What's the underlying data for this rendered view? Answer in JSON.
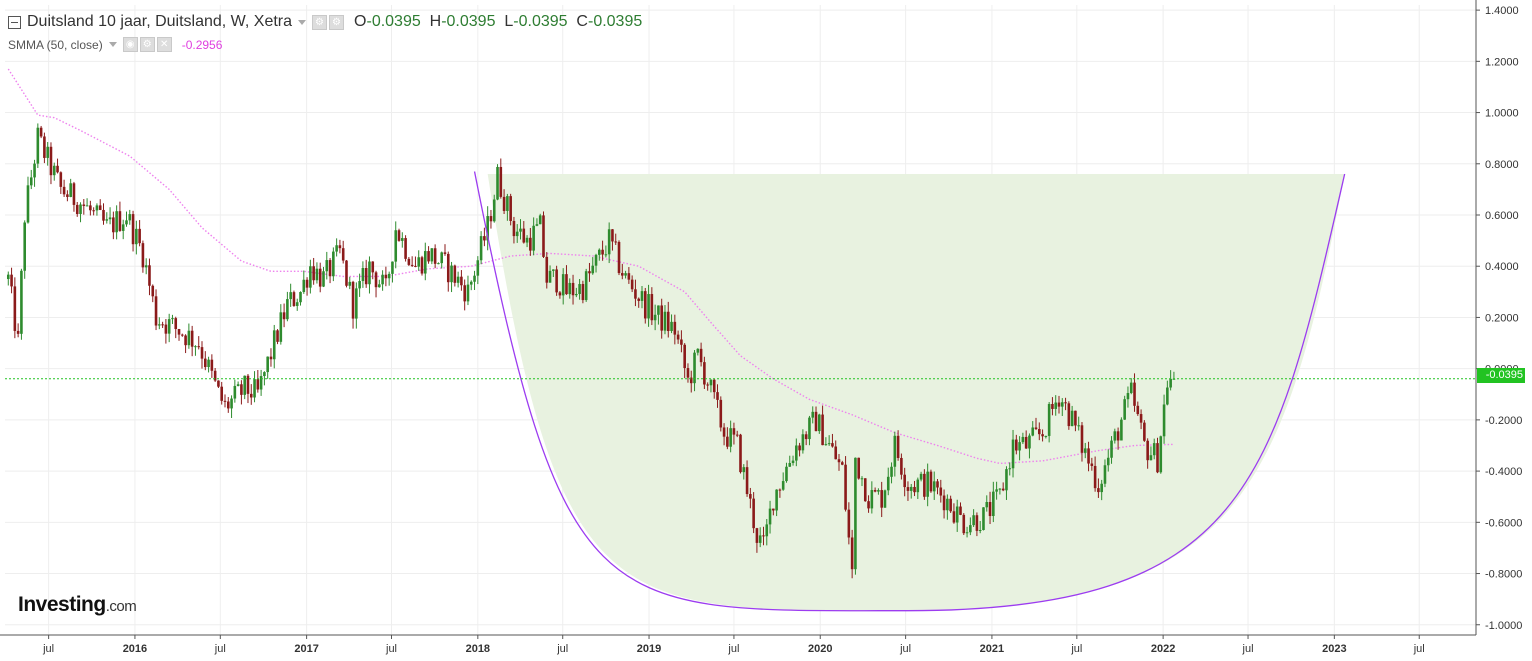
{
  "header": {
    "title": "Duitsland 10 jaar, Duitsland, W, Xetra",
    "ohlc": {
      "o_label": "O",
      "o": "-0.0395",
      "h_label": "H",
      "h": "-0.0395",
      "l_label": "L",
      "l": "-0.0395",
      "c_label": "C",
      "c": "-0.0395"
    }
  },
  "indicator": {
    "label": "SMMA (50, close)",
    "value": "-0.2956",
    "color": "#e040e0"
  },
  "logo": {
    "main": "Investing",
    "domain": ".com"
  },
  "last_price_tag": "-0.0395",
  "colors": {
    "up": "#2e8b2e",
    "down": "#8b1a1a",
    "smma": "#ee82ee",
    "arc": "#9c3cf0",
    "fill": "#e8f2e0",
    "price_line": "#22c322",
    "grid": "#eeeeee"
  },
  "chart_data": {
    "type": "candlestick",
    "timeframe": "W",
    "x_ticks": [
      "jul",
      "2016",
      "jul",
      "2017",
      "jul",
      "2018",
      "jul",
      "2019",
      "jul",
      "2020",
      "jul",
      "2021",
      "jul",
      "2022",
      "jul",
      "2023",
      "jul"
    ],
    "y_ticks": [
      "1.4000",
      "1.2000",
      "1.0000",
      "0.8000",
      "0.6000",
      "0.4000",
      "0.2000",
      "0.0000",
      "-0.2000",
      "-0.4000",
      "-0.6000",
      "-0.8000",
      "-1.0000"
    ],
    "ylim": [
      -1.04,
      1.42
    ],
    "anchors": [
      [
        "2015-04-06",
        0.35
      ],
      [
        "2015-04-27",
        0.1
      ],
      [
        "2015-05-11",
        0.6
      ],
      [
        "2015-06-08",
        0.9
      ],
      [
        "2015-07-27",
        0.7
      ],
      [
        "2015-09-07",
        0.65
      ],
      [
        "2015-11-02",
        0.55
      ],
      [
        "2015-12-14",
        0.6
      ],
      [
        "2016-01-18",
        0.45
      ],
      [
        "2016-02-15",
        0.2
      ],
      [
        "2016-04-04",
        0.15
      ],
      [
        "2016-05-16",
        0.1
      ],
      [
        "2016-06-27",
        -0.1
      ],
      [
        "2016-07-11",
        -0.15
      ],
      [
        "2016-08-22",
        -0.08
      ],
      [
        "2016-09-19",
        -0.1
      ],
      [
        "2016-10-24",
        0.1
      ],
      [
        "2016-11-21",
        0.25
      ],
      [
        "2016-12-19",
        0.3
      ],
      [
        "2017-01-09",
        0.4
      ],
      [
        "2017-02-06",
        0.35
      ],
      [
        "2017-03-13",
        0.45
      ],
      [
        "2017-04-10",
        0.25
      ],
      [
        "2017-05-15",
        0.4
      ],
      [
        "2017-06-19",
        0.3
      ],
      [
        "2017-07-10",
        0.55
      ],
      [
        "2017-08-21",
        0.4
      ],
      [
        "2017-09-18",
        0.45
      ],
      [
        "2017-10-23",
        0.4
      ],
      [
        "2017-12-11",
        0.3
      ],
      [
        "2018-01-22",
        0.55
      ],
      [
        "2018-02-12",
        0.75
      ],
      [
        "2018-03-19",
        0.55
      ],
      [
        "2018-04-16",
        0.5
      ],
      [
        "2018-05-14",
        0.55
      ],
      [
        "2018-05-28",
        0.35
      ],
      [
        "2018-06-18",
        0.35
      ],
      [
        "2018-07-09",
        0.3
      ],
      [
        "2018-08-13",
        0.32
      ],
      [
        "2018-10-08",
        0.5
      ],
      [
        "2018-11-12",
        0.35
      ],
      [
        "2018-12-24",
        0.25
      ],
      [
        "2019-01-21",
        0.2
      ],
      [
        "2019-02-25",
        0.15
      ],
      [
        "2019-03-25",
        -0.05
      ],
      [
        "2019-04-15",
        0.05
      ],
      [
        "2019-05-06",
        -0.05
      ],
      [
        "2019-06-10",
        -0.25
      ],
      [
        "2019-07-08",
        -0.3
      ],
      [
        "2019-08-19",
        -0.65
      ],
      [
        "2019-09-02",
        -0.7
      ],
      [
        "2019-09-23",
        -0.5
      ],
      [
        "2019-11-11",
        -0.3
      ],
      [
        "2019-12-23",
        -0.2
      ],
      [
        "2020-02-17",
        -0.4
      ],
      [
        "2020-03-09",
        -0.8
      ],
      [
        "2020-03-16",
        -0.35
      ],
      [
        "2020-04-13",
        -0.5
      ],
      [
        "2020-05-11",
        -0.5
      ],
      [
        "2020-06-08",
        -0.3
      ],
      [
        "2020-07-06",
        -0.45
      ],
      [
        "2020-08-17",
        -0.45
      ],
      [
        "2020-09-21",
        -0.5
      ],
      [
        "2020-11-02",
        -0.6
      ],
      [
        "2020-12-14",
        -0.58
      ],
      [
        "2021-01-18",
        -0.5
      ],
      [
        "2021-02-15",
        -0.3
      ],
      [
        "2021-03-15",
        -0.3
      ],
      [
        "2021-04-19",
        -0.25
      ],
      [
        "2021-05-24",
        -0.1
      ],
      [
        "2021-06-21",
        -0.2
      ],
      [
        "2021-07-12",
        -0.3
      ],
      [
        "2021-08-16",
        -0.45
      ],
      [
        "2021-09-06",
        -0.35
      ],
      [
        "2021-10-04",
        -0.2
      ],
      [
        "2021-10-25",
        -0.1
      ],
      [
        "2021-11-22",
        -0.3
      ],
      [
        "2021-12-20",
        -0.35
      ],
      [
        "2022-01-10",
        -0.05
      ],
      [
        "2022-01-24",
        -0.0395
      ]
    ],
    "smma": [
      [
        "2015-04-06",
        1.17
      ],
      [
        "2015-06-08",
        0.99
      ],
      [
        "2015-07-13",
        0.98
      ],
      [
        "2015-09-07",
        0.93
      ],
      [
        "2015-12-21",
        0.83
      ],
      [
        "2016-03-14",
        0.7
      ],
      [
        "2016-05-23",
        0.55
      ],
      [
        "2016-08-15",
        0.42
      ],
      [
        "2016-10-17",
        0.38
      ],
      [
        "2016-12-26",
        0.38
      ],
      [
        "2017-03-20",
        0.36
      ],
      [
        "2017-06-19",
        0.36
      ],
      [
        "2017-09-18",
        0.39
      ],
      [
        "2017-12-18",
        0.4
      ],
      [
        "2018-03-12",
        0.44
      ],
      [
        "2018-06-04",
        0.45
      ],
      [
        "2018-09-03",
        0.44
      ],
      [
        "2018-12-10",
        0.4
      ],
      [
        "2019-03-18",
        0.3
      ],
      [
        "2019-05-13",
        0.18
      ],
      [
        "2019-07-15",
        0.05
      ],
      [
        "2019-09-23",
        -0.04
      ],
      [
        "2019-12-09",
        -0.12
      ],
      [
        "2020-03-09",
        -0.18
      ],
      [
        "2020-06-08",
        -0.25
      ],
      [
        "2020-09-07",
        -0.3
      ],
      [
        "2020-11-30",
        -0.35
      ],
      [
        "2021-01-18",
        -0.37
      ],
      [
        "2021-04-19",
        -0.36
      ],
      [
        "2021-08-16",
        -0.32
      ],
      [
        "2021-11-01",
        -0.3
      ],
      [
        "2022-01-24",
        -0.2956
      ]
    ],
    "last_price": -0.0395,
    "cup_arc": {
      "start": [
        "2017-12-25",
        0.77
      ],
      "bottom": [
        "2020-07-06",
        -0.945
      ],
      "end": [
        "2023-01-23",
        0.76
      ]
    },
    "cup_fill": {
      "top": 0.76,
      "left": [
        "2018-01-22",
        0.76
      ],
      "bottom": [
        "2020-07-06",
        -0.945
      ],
      "right": [
        "2023-01-23",
        0.76
      ]
    }
  }
}
